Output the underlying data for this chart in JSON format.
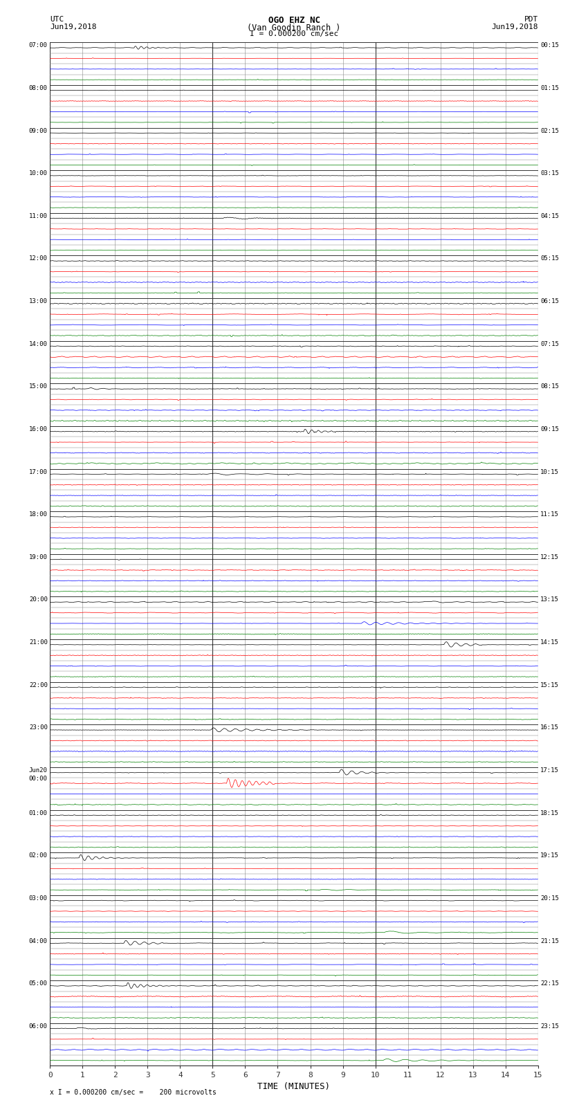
{
  "title_line1": "OGO EHZ NC",
  "title_line2": "(Van Goodin Ranch )",
  "scale_text": "I = 0.000200 cm/sec",
  "footer_text": "x I = 0.000200 cm/sec =    200 microvolts",
  "xlabel": "TIME (MINUTES)",
  "utc_labels": {
    "0": "07:00",
    "4": "08:00",
    "8": "09:00",
    "12": "10:00",
    "16": "11:00",
    "20": "12:00",
    "24": "13:00",
    "28": "14:00",
    "32": "15:00",
    "36": "16:00",
    "40": "17:00",
    "44": "18:00",
    "48": "19:00",
    "52": "20:00",
    "56": "21:00",
    "60": "22:00",
    "64": "23:00",
    "68": "Jun20\n00:00",
    "72": "01:00",
    "76": "02:00",
    "80": "03:00",
    "84": "04:00",
    "88": "05:00",
    "92": "06:00"
  },
  "pdt_labels": {
    "0": "00:15",
    "4": "01:15",
    "8": "02:15",
    "12": "03:15",
    "16": "04:15",
    "20": "05:15",
    "24": "06:15",
    "28": "07:15",
    "32": "08:15",
    "36": "09:15",
    "40": "10:15",
    "44": "11:15",
    "48": "12:15",
    "52": "13:15",
    "56": "14:15",
    "60": "15:15",
    "64": "16:15",
    "68": "17:15",
    "72": "18:15",
    "76": "19:15",
    "80": "20:15",
    "84": "21:15",
    "88": "22:15",
    "92": "23:15"
  },
  "n_rows": 96,
  "bg_color": "#ffffff",
  "grid_color": "#555555",
  "minor_grid_color": "#999999",
  "row_colors_cycle": [
    "black",
    "red",
    "blue",
    "green"
  ],
  "fig_width": 8.5,
  "fig_height": 16.13
}
